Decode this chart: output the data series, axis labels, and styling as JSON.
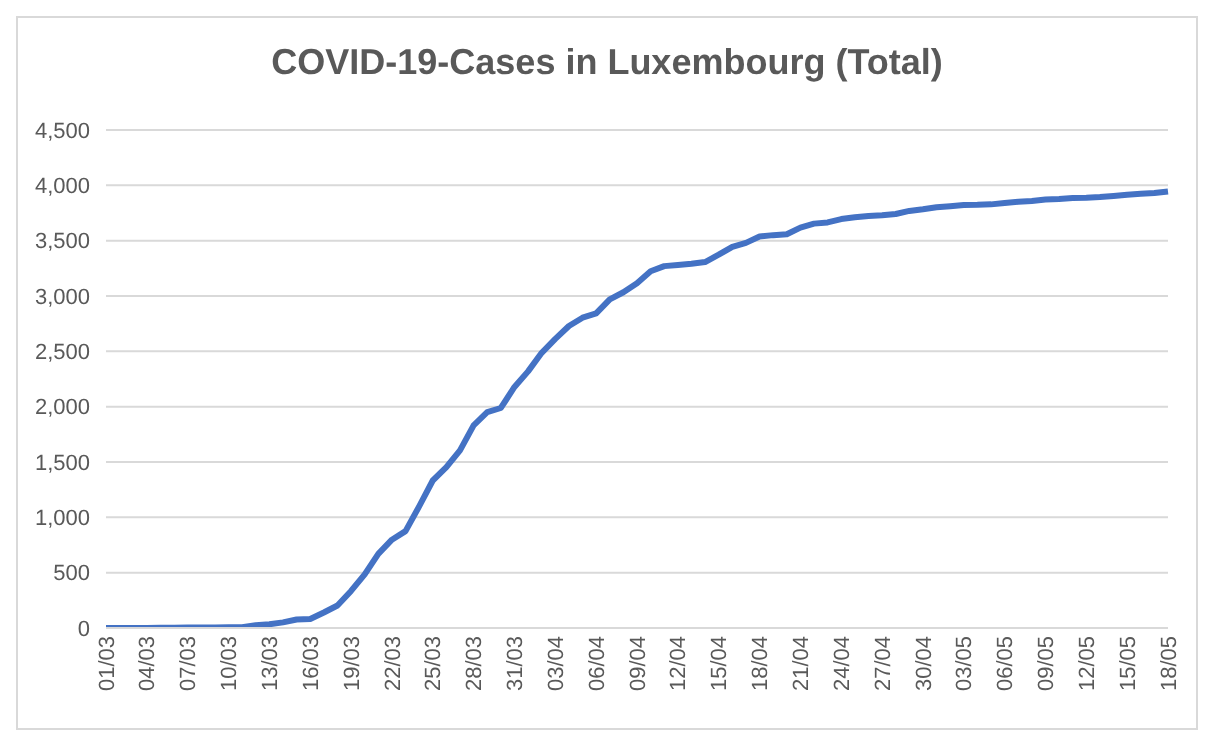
{
  "chart_data": {
    "type": "line",
    "title": "COVID-19-Cases in Luxembourg (Total)",
    "categories": [
      "01/03",
      null,
      null,
      "04/03",
      null,
      null,
      "07/03",
      null,
      null,
      "10/03",
      null,
      null,
      "13/03",
      null,
      null,
      "16/03",
      null,
      null,
      "19/03",
      null,
      null,
      "22/03",
      null,
      null,
      "25/03",
      null,
      null,
      "28/03",
      null,
      null,
      "31/03",
      null,
      null,
      "03/04",
      null,
      null,
      "06/04",
      null,
      null,
      "09/04",
      null,
      null,
      "12/04",
      null,
      null,
      "15/04",
      null,
      null,
      "18/04",
      null,
      null,
      "21/04",
      null,
      null,
      "24/04",
      null,
      null,
      "27/04",
      null,
      null,
      "30/04",
      null,
      null,
      "03/05",
      null,
      null,
      "06/05",
      null,
      null,
      "09/05",
      null,
      null,
      "12/05",
      null,
      null,
      "15/05",
      null,
      null,
      "18/05"
    ],
    "series": [
      {
        "color": "#4472c4",
        "values": [
          1,
          1,
          1,
          1,
          2,
          3,
          4,
          5,
          5,
          7,
          7,
          26,
          34,
          51,
          77,
          81,
          140,
          203,
          335,
          484,
          670,
          798,
          875,
          1099,
          1333,
          1453,
          1605,
          1831,
          1950,
          1988,
          2178,
          2319,
          2487,
          2612,
          2729,
          2804,
          2843,
          2970,
          3034,
          3115,
          3223,
          3270,
          3281,
          3292,
          3307,
          3373,
          3444,
          3480,
          3537,
          3550,
          3558,
          3618,
          3654,
          3665,
          3695,
          3711,
          3723,
          3729,
          3741,
          3769,
          3784,
          3802,
          3812,
          3823,
          3824,
          3828,
          3840,
          3851,
          3859,
          3871,
          3877,
          3886,
          3888,
          3894,
          3904,
          3915,
          3923,
          3930,
          3945
        ]
      }
    ],
    "ylim": [
      0,
      4500
    ],
    "yticks": [
      0,
      500,
      {
        "value": 1000,
        "label": "1,000"
      },
      {
        "value": 1500,
        "label": "1,500"
      },
      {
        "value": 2000,
        "label": "2,000"
      },
      {
        "value": 2500,
        "label": "2,500"
      },
      {
        "value": 3000,
        "label": "3,000"
      },
      {
        "value": 3500,
        "label": "3,500"
      },
      {
        "value": 4000,
        "label": "4,000"
      },
      {
        "value": 4500,
        "label": "4,500"
      }
    ],
    "grid": "y",
    "marker": "none"
  }
}
